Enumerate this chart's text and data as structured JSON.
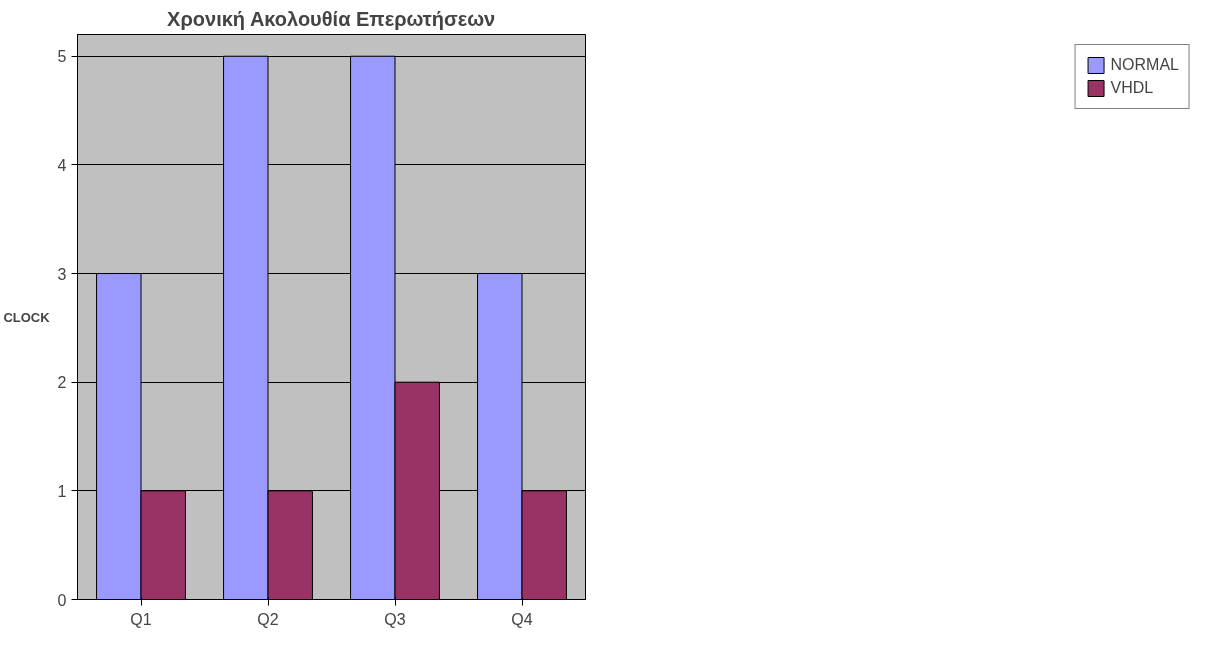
{
  "chart_data": {
    "type": "bar",
    "title": "Χρονική Ακολουθία Επερωτήσεων",
    "ylabel": "CLOCK",
    "categories": [
      "Q1",
      "Q2",
      "Q3",
      "Q4"
    ],
    "series": [
      {
        "name": "NORMAL",
        "color": "#9999ff",
        "values": [
          3,
          5,
          5,
          3
        ]
      },
      {
        "name": "VHDL",
        "color": "#993366",
        "values": [
          1,
          1,
          2,
          1
        ]
      }
    ],
    "ylim": [
      0,
      5
    ],
    "yticks": [
      0,
      1,
      2,
      3,
      4,
      5
    ],
    "grid": "y",
    "legend": "right"
  }
}
